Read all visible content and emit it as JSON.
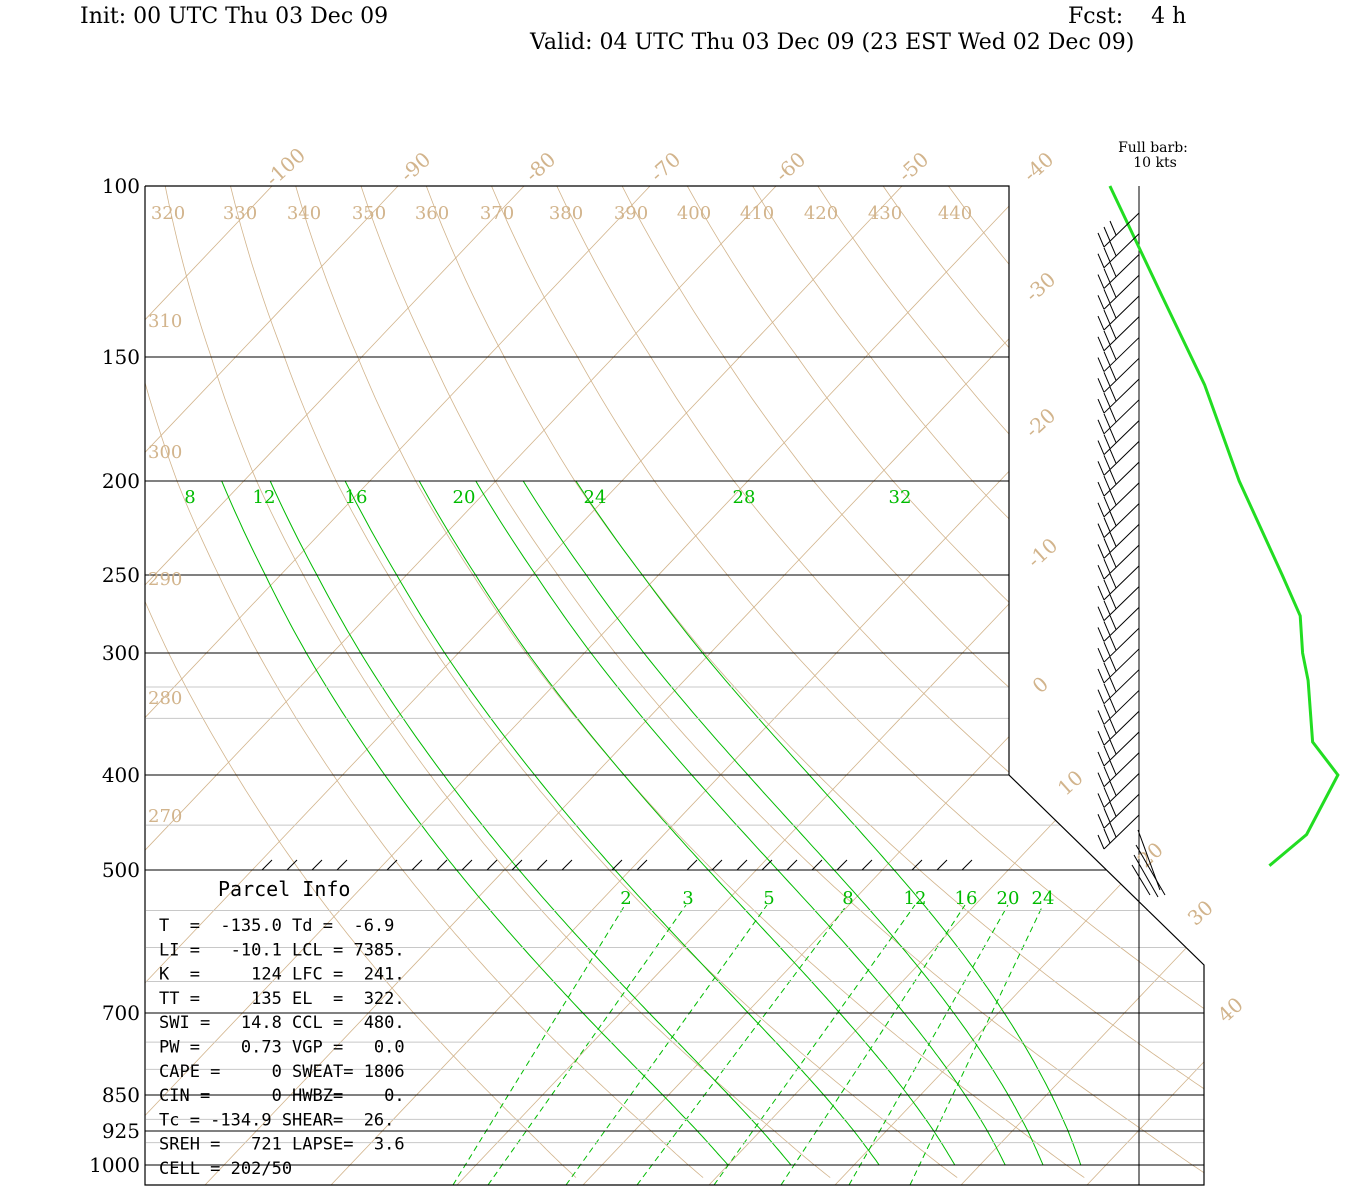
{
  "header": {
    "init": "Init: 00 UTC Thu 03 Dec 09",
    "fcst": "Fcst:    4 h",
    "valid": "Valid: 04 UTC Thu 03 Dec 09 (23 EST Wed 02 Dec 09)"
  },
  "barb_legend": {
    "line1": "Full barb:",
    "line2": "10 kts"
  },
  "chart_data": {
    "type": "skew-t",
    "pressure_levels": [
      {
        "p": 100,
        "label": "100"
      },
      {
        "p": 150,
        "label": "150"
      },
      {
        "p": 200,
        "label": "200"
      },
      {
        "p": 250,
        "label": "250"
      },
      {
        "p": 300,
        "label": "300"
      },
      {
        "p": 400,
        "label": "400"
      },
      {
        "p": 500,
        "label": "500"
      },
      {
        "p": 700,
        "label": "700"
      },
      {
        "p": 850,
        "label": "850"
      },
      {
        "p": 925,
        "label": "925"
      },
      {
        "p": 1000,
        "label": "1000"
      }
    ],
    "isotherm_labels": [
      "-100",
      "-90",
      "-80",
      "-70",
      "-60",
      "-50",
      "-40",
      "-30",
      "-20",
      "-10",
      "0",
      "10",
      "20",
      "30",
      "40"
    ],
    "theta_labels_top": [
      "320",
      "330",
      "340",
      "350",
      "360",
      "370",
      "380",
      "390",
      "400",
      "410",
      "420",
      "430",
      "440"
    ],
    "theta_labels_left": [
      {
        "p": 138,
        "label": "310"
      },
      {
        "p": 188,
        "label": "300"
      },
      {
        "p": 250,
        "label": "290"
      },
      {
        "p": 330,
        "label": "280"
      },
      {
        "p": 425,
        "label": "270"
      }
    ],
    "moist_adiabat_labels": [
      "8",
      "12",
      "16",
      "20",
      "24",
      "28",
      "32"
    ],
    "mixing_ratio_labels": [
      "2",
      "3",
      "5",
      "8",
      "12",
      "16",
      "20",
      "24"
    ],
    "temperature_profile": {
      "color": "#22dd22",
      "points": [
        {
          "p": 495,
          "t": 0.4
        },
        {
          "p": 460,
          "t": 1.0
        },
        {
          "p": 400,
          "t": -1.0
        },
        {
          "p": 370,
          "t": -5.5
        },
        {
          "p": 320,
          "t": -10.5
        },
        {
          "p": 300,
          "t": -13.0
        },
        {
          "p": 275,
          "t": -16.0
        },
        {
          "p": 250,
          "t": -20.5
        },
        {
          "p": 200,
          "t": -31.0
        },
        {
          "p": 160,
          "t": -41.0
        },
        {
          "p": 130,
          "t": -51.0
        },
        {
          "p": 100,
          "t": -63.5
        }
      ]
    },
    "wind_barb_count": 30,
    "parcel_info": {
      "title": "Parcel Info",
      "rows": [
        "T  =  -135.0 Td =  -6.9",
        "LI =   -10.1 LCL = 7385.",
        "K  =     124 LFC =  241.",
        "TT =     135 EL  =  322.",
        "SWI =   14.8 CCL =  480.",
        "PW =    0.73 VGP =   0.0",
        "CAPE =     0 SWEAT= 1806",
        "CIN =      0 HWBZ=    0.",
        "Tc = -134.9 SHEAR=  26.",
        "SREH =   721 LAPSE=  3.6",
        "CELL = 202/50"
      ]
    }
  }
}
